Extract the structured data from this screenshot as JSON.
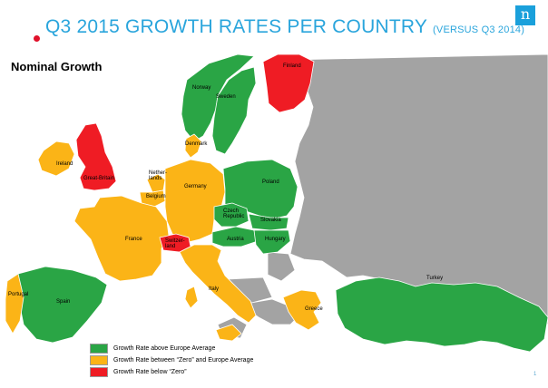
{
  "title": "Q3 2015 GROWTH RATES PER COUNTRY",
  "subtitle": "(VERSUS Q3 2014)",
  "logo_text": "n",
  "map_label": "Nominal Growth",
  "page_number": "1",
  "colors": {
    "above": "#2aa545",
    "between": "#fbb417",
    "below": "#ef1c24",
    "other": "#a3a3a3",
    "sea": "#ffffff",
    "title": "#2aa5dc"
  },
  "legend": [
    {
      "category": "above",
      "label": "Growth Rate above Europe Average"
    },
    {
      "category": "between",
      "label": "Growth Rate between “Zero” and Europe Average"
    },
    {
      "category": "below",
      "label": "Growth Rate below “Zero”"
    }
  ],
  "countries": [
    {
      "name": "Norway",
      "label": "Norway",
      "category": "above"
    },
    {
      "name": "Sweden",
      "label": "Sweden",
      "category": "above"
    },
    {
      "name": "Finland",
      "label": "Finland",
      "category": "below"
    },
    {
      "name": "Denmark",
      "label": "Denmark",
      "category": "between"
    },
    {
      "name": "Ireland",
      "label": "Ireland",
      "category": "between"
    },
    {
      "name": "Great-Britain",
      "label": "Great-Britain",
      "category": "below"
    },
    {
      "name": "Netherlands",
      "label": "Nether-\nlands",
      "category": "between"
    },
    {
      "name": "Belgium",
      "label": "Belgium",
      "category": "between"
    },
    {
      "name": "Germany",
      "label": "Germany",
      "category": "between"
    },
    {
      "name": "Poland",
      "label": "Poland",
      "category": "above"
    },
    {
      "name": "Czech Republic",
      "label": "Czech\nRepublic",
      "category": "above"
    },
    {
      "name": "Slovakia",
      "label": "Slovakia",
      "category": "above"
    },
    {
      "name": "Austria",
      "label": "Austria",
      "category": "above"
    },
    {
      "name": "Hungary",
      "label": "Hungary",
      "category": "above"
    },
    {
      "name": "France",
      "label": "France",
      "category": "between"
    },
    {
      "name": "Switzerland",
      "label": "Switzer-\nland",
      "category": "below"
    },
    {
      "name": "Italy",
      "label": "Italy",
      "category": "between"
    },
    {
      "name": "Spain",
      "label": "Spain",
      "category": "above"
    },
    {
      "name": "Portugal",
      "label": "Portugal",
      "category": "between"
    },
    {
      "name": "Greece",
      "label": "Greece",
      "category": "between"
    },
    {
      "name": "Turkey",
      "label": "Turkey",
      "category": "above"
    }
  ]
}
